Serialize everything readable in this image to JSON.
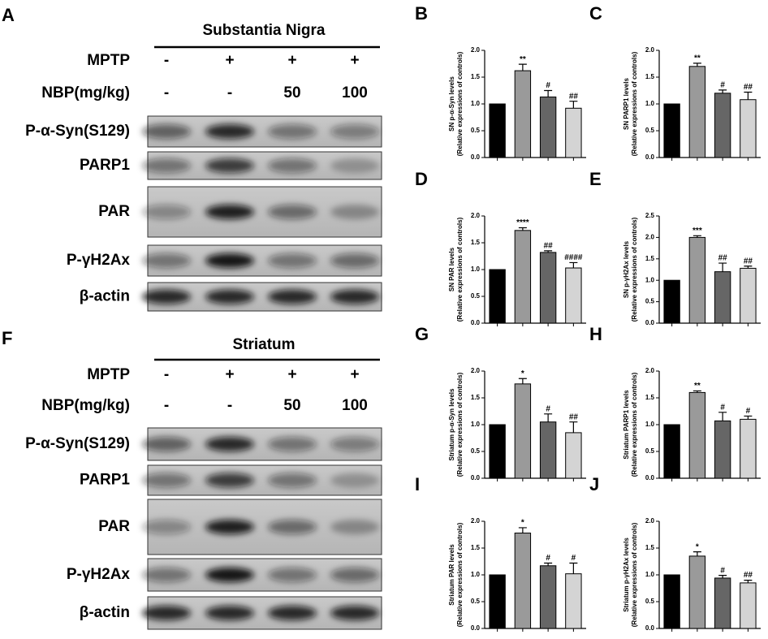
{
  "blots": [
    {
      "letter": "A",
      "title": "Substantia Nigra",
      "conditions": [
        {
          "name": "MPTP",
          "levels": [
            "-",
            "+",
            "+",
            "+"
          ]
        },
        {
          "name": "NBP(mg/kg)",
          "levels": [
            "-",
            "-",
            "50",
            "100"
          ]
        }
      ],
      "bands": [
        "P-α-Syn(S129)",
        "PARP1",
        "PAR",
        "P-γH2Ax",
        "β-actin"
      ]
    },
    {
      "letter": "F",
      "title": "Striatum",
      "conditions": [
        {
          "name": "MPTP",
          "levels": [
            "-",
            "+",
            "+",
            "+"
          ]
        },
        {
          "name": "NBP(mg/kg)",
          "levels": [
            "-",
            "-",
            "50",
            "100"
          ]
        }
      ],
      "bands": [
        "P-α-Syn(S129)",
        "PARP1",
        "PAR",
        "P-γH2Ax",
        "β-actin"
      ]
    }
  ],
  "chart_data": [
    {
      "type": "bar",
      "letter": "B",
      "ylabel": [
        "SN p-α-Syn levels",
        "(Relative expressions of controls)"
      ],
      "categories": [
        null,
        null,
        null,
        null
      ],
      "values": [
        1.0,
        1.62,
        1.13,
        0.92
      ],
      "errors": [
        0,
        0.12,
        0.12,
        0.13
      ],
      "annotations": [
        null,
        "**",
        "#",
        "##"
      ],
      "colors": [
        "#000000",
        "#9a9a9a",
        "#666666",
        "#d4d4d4"
      ],
      "ylim": [
        0,
        2
      ],
      "yticks": [
        {
          "value": 0,
          "label": "0.0"
        },
        {
          "value": 0.5,
          "label": "0.5"
        },
        {
          "value": 1,
          "label": "1.0"
        },
        {
          "value": 1.5,
          "label": "1.5"
        },
        {
          "value": 2,
          "label": "2.0"
        }
      ]
    },
    {
      "type": "bar",
      "letter": "C",
      "ylabel": [
        "SN PARP1 levels",
        "(Relative expressions of controls)"
      ],
      "categories": [
        null,
        null,
        null,
        null
      ],
      "values": [
        1.0,
        1.7,
        1.2,
        1.08
      ],
      "errors": [
        0,
        0.06,
        0.06,
        0.14
      ],
      "annotations": [
        null,
        "**",
        "#",
        "##"
      ],
      "colors": [
        "#000000",
        "#9a9a9a",
        "#666666",
        "#d4d4d4"
      ],
      "ylim": [
        0,
        2
      ],
      "yticks": [
        {
          "value": 0,
          "label": "0.0"
        },
        {
          "value": 0.5,
          "label": "0.5"
        },
        {
          "value": 1,
          "label": "1.0"
        },
        {
          "value": 1.5,
          "label": "1.5"
        },
        {
          "value": 2,
          "label": "2.0"
        }
      ]
    },
    {
      "type": "bar",
      "letter": "D",
      "ylabel": [
        "SN PAR levels",
        "(Relative expressions of controls)"
      ],
      "categories": [
        null,
        null,
        null,
        null
      ],
      "values": [
        1.0,
        1.73,
        1.32,
        1.03
      ],
      "errors": [
        0,
        0.05,
        0.03,
        0.1
      ],
      "annotations": [
        null,
        "****",
        "##",
        "####"
      ],
      "colors": [
        "#000000",
        "#9a9a9a",
        "#666666",
        "#d4d4d4"
      ],
      "ylim": [
        0,
        2
      ],
      "yticks": [
        {
          "value": 0,
          "label": "0.0"
        },
        {
          "value": 0.5,
          "label": "0.5"
        },
        {
          "value": 1,
          "label": "1.0"
        },
        {
          "value": 1.5,
          "label": "1.5"
        },
        {
          "value": 2,
          "label": "2.0"
        }
      ]
    },
    {
      "type": "bar",
      "letter": "E",
      "ylabel": [
        "SN p-γH2Ax levels",
        "(Relative expressions of controls)"
      ],
      "categories": [
        null,
        null,
        null,
        null
      ],
      "values": [
        1.0,
        2.0,
        1.2,
        1.28
      ],
      "errors": [
        0,
        0.04,
        0.2,
        0.05
      ],
      "annotations": [
        null,
        "***",
        "##",
        "##"
      ],
      "colors": [
        "#000000",
        "#9a9a9a",
        "#666666",
        "#d4d4d4"
      ],
      "ylim": [
        0,
        2.5
      ],
      "yticks": [
        {
          "value": 0,
          "label": "0.0"
        },
        {
          "value": 0.5,
          "label": "0.5"
        },
        {
          "value": 1,
          "label": "1.0"
        },
        {
          "value": 1.5,
          "label": "1.5"
        },
        {
          "value": 2,
          "label": "2.0"
        },
        {
          "value": 2.5,
          "label": "2.5"
        }
      ]
    },
    {
      "type": "bar",
      "letter": "G",
      "ylabel": [
        "Striatum p-α-Syn levels",
        "(Relative expressions of controls)"
      ],
      "categories": [
        null,
        null,
        null,
        null
      ],
      "values": [
        1.0,
        1.76,
        1.05,
        0.85
      ],
      "errors": [
        0,
        0.1,
        0.15,
        0.2
      ],
      "annotations": [
        null,
        "*",
        "#",
        "##"
      ],
      "colors": [
        "#000000",
        "#9a9a9a",
        "#666666",
        "#d4d4d4"
      ],
      "ylim": [
        0,
        2
      ],
      "yticks": [
        {
          "value": 0,
          "label": "0.0"
        },
        {
          "value": 0.5,
          "label": "0.5"
        },
        {
          "value": 1,
          "label": "1.0"
        },
        {
          "value": 1.5,
          "label": "1.5"
        },
        {
          "value": 2,
          "label": "2.0"
        }
      ]
    },
    {
      "type": "bar",
      "letter": "H",
      "ylabel": [
        "Striatum PARP1 levels",
        "(Relative expressions of controls)"
      ],
      "categories": [
        null,
        null,
        null,
        null
      ],
      "values": [
        1.0,
        1.6,
        1.07,
        1.1
      ],
      "errors": [
        0,
        0.03,
        0.16,
        0.06
      ],
      "annotations": [
        null,
        "**",
        "#",
        "#"
      ],
      "colors": [
        "#000000",
        "#9a9a9a",
        "#666666",
        "#d4d4d4"
      ],
      "ylim": [
        0,
        2
      ],
      "yticks": [
        {
          "value": 0,
          "label": "0.0"
        },
        {
          "value": 0.5,
          "label": "0.5"
        },
        {
          "value": 1,
          "label": "1.0"
        },
        {
          "value": 1.5,
          "label": "1.5"
        },
        {
          "value": 2,
          "label": "2.0"
        }
      ]
    },
    {
      "type": "bar",
      "letter": "I",
      "ylabel": [
        "Striatum PAR levels",
        "(Relative expressions of controls)"
      ],
      "categories": [
        null,
        null,
        null,
        null
      ],
      "values": [
        1.0,
        1.78,
        1.17,
        1.02
      ],
      "errors": [
        0,
        0.1,
        0.05,
        0.2
      ],
      "annotations": [
        null,
        "*",
        "#",
        "#"
      ],
      "colors": [
        "#000000",
        "#9a9a9a",
        "#666666",
        "#d4d4d4"
      ],
      "ylim": [
        0,
        2
      ],
      "yticks": [
        {
          "value": 0,
          "label": "0.0"
        },
        {
          "value": 0.5,
          "label": "0.5"
        },
        {
          "value": 1,
          "label": "1.0"
        },
        {
          "value": 1.5,
          "label": "1.5"
        },
        {
          "value": 2,
          "label": "2.0"
        }
      ]
    },
    {
      "type": "bar",
      "letter": "J",
      "ylabel": [
        "Striatum p-γH2Ax levels",
        "(Relative expressions of controls)"
      ],
      "categories": [
        null,
        null,
        null,
        null
      ],
      "values": [
        1.0,
        1.35,
        0.94,
        0.85
      ],
      "errors": [
        0,
        0.08,
        0.05,
        0.05
      ],
      "annotations": [
        null,
        "*",
        "#",
        "##"
      ],
      "colors": [
        "#000000",
        "#9a9a9a",
        "#666666",
        "#d4d4d4"
      ],
      "ylim": [
        0,
        2
      ],
      "yticks": [
        {
          "value": 0,
          "label": "0.0"
        },
        {
          "value": 0.5,
          "label": "0.5"
        },
        {
          "value": 1,
          "label": "1.0"
        },
        {
          "value": 1.5,
          "label": "1.5"
        },
        {
          "value": 2,
          "label": "2.0"
        }
      ]
    }
  ]
}
